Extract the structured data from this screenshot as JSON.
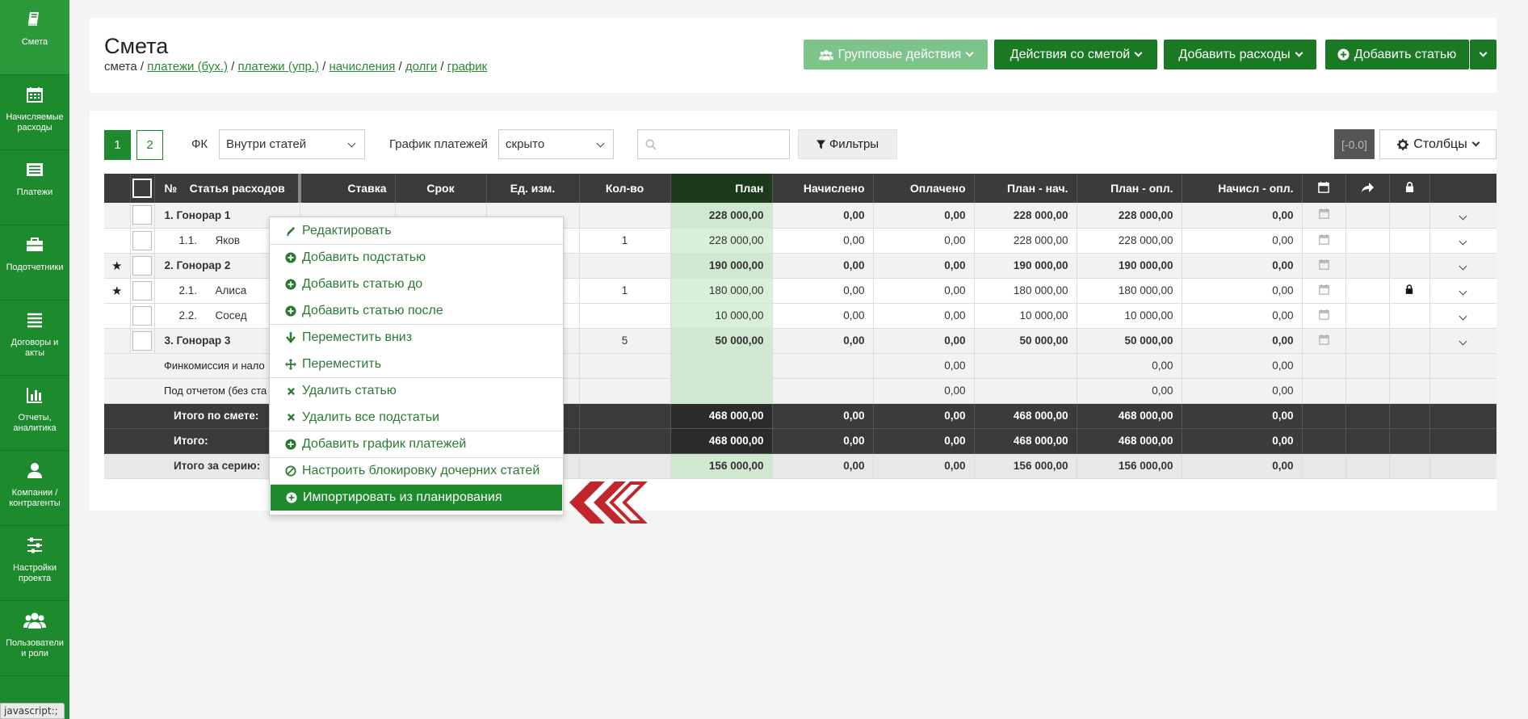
{
  "sidebar": {
    "items": [
      {
        "label": "Смета",
        "icon": "book-icon"
      },
      {
        "label": "Начисляемые расходы",
        "icon": "calendar-icon"
      },
      {
        "label": "Платежи",
        "icon": "list-icon"
      },
      {
        "label": "Подотчетники",
        "icon": "briefcase-icon"
      },
      {
        "label": "Договоры и акты",
        "icon": "menu-icon"
      },
      {
        "label": "Отчеты, аналитика",
        "icon": "bar-chart-icon"
      },
      {
        "label": "Компании / контрагенты",
        "icon": "user-icon"
      },
      {
        "label": "Настройки проекта",
        "icon": "sliders-icon"
      },
      {
        "label": "Пользователи и роли",
        "icon": "users-icon"
      }
    ],
    "status_bar": "javascript:;"
  },
  "header": {
    "title": "Смета",
    "breadcrumb": {
      "current": "смета",
      "links": [
        "платежи (бух.)",
        "платежи (упр.)",
        "начисления",
        "долги",
        "график"
      ]
    },
    "buttons": {
      "group_actions": "Групповые действия",
      "estimate_actions": "Действия со сметой",
      "add_expenses": "Добавить расходы",
      "add_item": "Добавить статью"
    }
  },
  "toolbar": {
    "pages": [
      "1",
      "2"
    ],
    "fk_label": "ФК",
    "fk_value": "Внутри статей",
    "schedule_label": "График платежей",
    "schedule_value": "скрыто",
    "search_placeholder": "",
    "filters": "Фильтры",
    "version": "[-0.0]",
    "columns": "Столбцы"
  },
  "table": {
    "headers": {
      "num": "№",
      "item": "Статья расходов",
      "rate": "Ставка",
      "term": "Срок",
      "unit": "Ед. изм.",
      "qty": "Кол-во",
      "plan": "План",
      "accrued": "Начислено",
      "paid": "Оплачено",
      "plan_acc": "План - нач.",
      "plan_paid": "План - опл.",
      "acc_paid": "Начисл - опл."
    },
    "rows": [
      {
        "star": "",
        "num": "1.",
        "name": "Гонорар 1",
        "qty": "",
        "plan": "228 000,00",
        "accrued": "0,00",
        "paid": "0,00",
        "plan_acc": "228 000,00",
        "plan_paid": "228 000,00",
        "acc_paid": "0,00",
        "lock": ""
      },
      {
        "star": "",
        "num": "1.1.",
        "name": "Яков",
        "qty": "1",
        "plan": "228 000,00",
        "accrued": "0,00",
        "paid": "0,00",
        "plan_acc": "228 000,00",
        "plan_paid": "228 000,00",
        "acc_paid": "0,00",
        "lock": ""
      },
      {
        "star": "★",
        "num": "2.",
        "name": "Гонорар 2",
        "qty": "",
        "plan": "190 000,00",
        "accrued": "0,00",
        "paid": "0,00",
        "plan_acc": "190 000,00",
        "plan_paid": "190 000,00",
        "acc_paid": "0,00",
        "lock": ""
      },
      {
        "star": "★",
        "num": "2.1.",
        "name": "Алиса",
        "qty": "1",
        "plan": "180 000,00",
        "accrued": "0,00",
        "paid": "0,00",
        "plan_acc": "180 000,00",
        "plan_paid": "180 000,00",
        "acc_paid": "0,00",
        "lock": "lock"
      },
      {
        "star": "",
        "num": "2.2.",
        "name": "Сосед",
        "qty": "",
        "plan": "10 000,00",
        "accrued": "0,00",
        "paid": "0,00",
        "plan_acc": "10 000,00",
        "plan_paid": "10 000,00",
        "acc_paid": "0,00",
        "lock": ""
      },
      {
        "star": "",
        "num": "3.",
        "name": "Гонорар 3",
        "qty": "5",
        "plan": "50 000,00",
        "accrued": "0,00",
        "paid": "0,00",
        "plan_acc": "50 000,00",
        "plan_paid": "50 000,00",
        "acc_paid": "0,00",
        "lock": ""
      }
    ],
    "extra_rows": [
      {
        "label": "Финкомиссия и нало",
        "paid": "0,00",
        "plan_paid": "0,00",
        "acc_paid": "0,00"
      },
      {
        "label": "Под отчетом (без ста",
        "paid": "0,00",
        "plan_paid": "0,00",
        "acc_paid": "0,00"
      }
    ],
    "totals": [
      {
        "label": "Итого по смете:",
        "plan": "468 000,00",
        "accrued": "0,00",
        "paid": "0,00",
        "plan_acc": "468 000,00",
        "plan_paid": "468 000,00",
        "acc_paid": "0,00"
      },
      {
        "label": "Итого:",
        "plan": "468 000,00",
        "accrued": "0,00",
        "paid": "0,00",
        "plan_acc": "468 000,00",
        "plan_paid": "468 000,00",
        "acc_paid": "0,00"
      }
    ],
    "series_total": {
      "label": "Итого за серию:",
      "plan": "156 000,00",
      "accrued": "0,00",
      "paid": "0,00",
      "plan_acc": "156 000,00",
      "plan_paid": "156 000,00",
      "acc_paid": "0,00"
    }
  },
  "context_menu": {
    "items": [
      {
        "label": "Редактировать",
        "icon": "pencil-icon",
        "sep": false
      },
      {
        "label": "Добавить подстатью",
        "icon": "plus-circle-icon",
        "sep": true
      },
      {
        "label": "Добавить статью до",
        "icon": "plus-circle-icon",
        "sep": false
      },
      {
        "label": "Добавить статью после",
        "icon": "plus-circle-icon",
        "sep": false
      },
      {
        "label": "Переместить вниз",
        "icon": "arrow-down-icon",
        "sep": true
      },
      {
        "label": "Переместить",
        "icon": "move-icon",
        "sep": false
      },
      {
        "label": "Удалить статью",
        "icon": "x-icon",
        "sep": true
      },
      {
        "label": "Удалить все подстатьи",
        "icon": "x-icon",
        "sep": false
      },
      {
        "label": "Добавить график платежей",
        "icon": "plus-circle-icon",
        "sep": true
      },
      {
        "label": "Настроить блокировку дочерних статей",
        "icon": "ban-icon",
        "sep": true
      },
      {
        "label": "Импортировать из планирования",
        "icon": "plus-circle-icon",
        "sep": true,
        "active": true
      }
    ]
  },
  "colors": {
    "sidebar": "#1e8a2e",
    "accent": "#1a7a24",
    "header_row": "#3b3b3b",
    "plan_column": "#d8efd8",
    "highlight_arrow": "#c0272d"
  }
}
